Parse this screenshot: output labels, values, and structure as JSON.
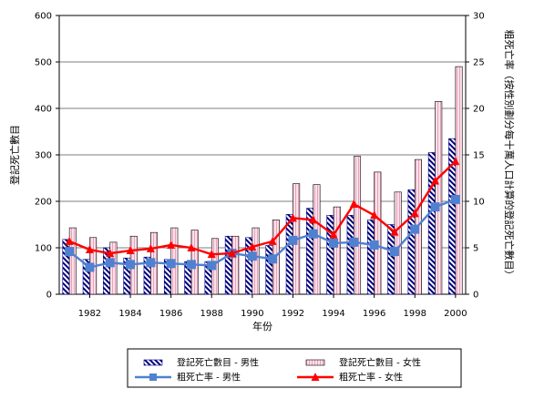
{
  "chart_data": {
    "type": "bar",
    "xlabel": "年份",
    "ylabel_left": "登記死亡數目",
    "ylabel_right": "粗死亡率（按性別劃分每十萬人口計算的登記死亡數目）",
    "ylim_left": [
      0,
      600
    ],
    "ylim_right": [
      0,
      30
    ],
    "yticks_left": [
      0,
      100,
      200,
      300,
      400,
      500,
      600
    ],
    "yticks_right": [
      0,
      5,
      10,
      15,
      20,
      25,
      30
    ],
    "years": [
      1981,
      1982,
      1983,
      1984,
      1985,
      1986,
      1987,
      1988,
      1989,
      1990,
      1991,
      1992,
      1993,
      1994,
      1995,
      1996,
      1997,
      1998,
      1999,
      2000
    ],
    "xtick_labels": [
      "1982",
      "1984",
      "1986",
      "1988",
      "1990",
      "1992",
      "1994",
      "1996",
      "1998",
      "2000"
    ],
    "bar_series": [
      {
        "name": "登記死亡數目 - 男性",
        "color": "#000080",
        "values": [
          118,
          75,
          100,
          78,
          80,
          75,
          70,
          70,
          125,
          122,
          105,
          172,
          185,
          170,
          170,
          160,
          150,
          225,
          305,
          335
        ]
      },
      {
        "name": "登記死亡數目 - 女性",
        "color": "#f8c8d8",
        "values": [
          143,
          122,
          112,
          125,
          133,
          143,
          138,
          120,
          125,
          143,
          160,
          238,
          236,
          188,
          297,
          263,
          220,
          290,
          415,
          490
        ]
      }
    ],
    "line_series": [
      {
        "name": "粗死亡率 - 男性",
        "color": "#4f81d0",
        "marker": "square",
        "values": [
          4.6,
          2.9,
          3.4,
          3.2,
          3.4,
          3.3,
          3.2,
          3.1,
          4.4,
          4.1,
          3.8,
          5.8,
          6.5,
          5.5,
          5.6,
          5.3,
          4.6,
          7.0,
          9.4,
          10.2
        ]
      },
      {
        "name": "粗死亡率 - 女性",
        "color": "#ff0000",
        "marker": "triangle",
        "values": [
          5.7,
          4.8,
          4.4,
          4.7,
          4.9,
          5.3,
          5.0,
          4.3,
          4.4,
          5.1,
          5.7,
          8.2,
          8.0,
          6.4,
          9.7,
          8.5,
          6.7,
          8.7,
          12.2,
          14.3
        ]
      }
    ]
  }
}
